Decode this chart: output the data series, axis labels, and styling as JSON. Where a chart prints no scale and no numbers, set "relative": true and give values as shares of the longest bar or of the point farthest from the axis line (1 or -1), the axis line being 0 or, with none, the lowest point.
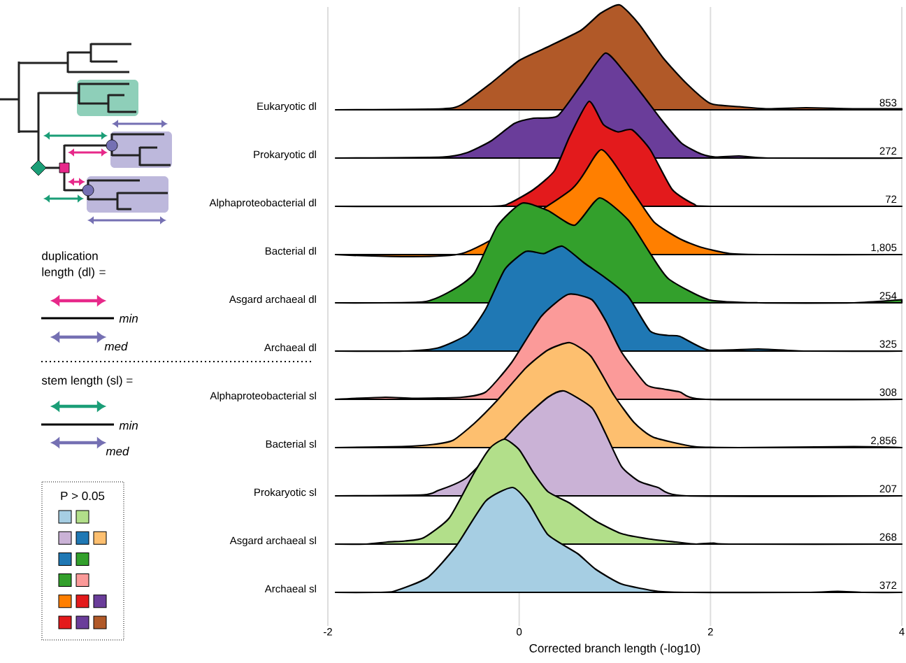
{
  "chart_data": [
    {
      "type": "area",
      "relative": true,
      "ylabel": "Eukaryotic dl",
      "color": "#b15928",
      "xlim": [
        -2,
        4
      ],
      "xticks": [
        -2,
        0,
        2,
        4
      ],
      "grid": "x",
      "tick_labels": false,
      "annotations": [
        "853"
      ],
      "x": [
        -1.92,
        -0.8,
        -0.6,
        -0.3,
        0,
        0.3,
        0.65,
        0.85,
        1.05,
        1.25,
        1.5,
        1.75,
        2.0,
        2.3,
        2.6,
        3.0,
        3.5,
        4.0
      ],
      "values": [
        0,
        0.01,
        0.05,
        0.25,
        0.47,
        0.6,
        0.76,
        0.92,
        1,
        0.82,
        0.5,
        0.25,
        0.06,
        0.03,
        0.01,
        0.02,
        0.01,
        0.01
      ]
    },
    {
      "type": "area",
      "relative": true,
      "ylabel": "Prokaryotic dl",
      "color": "#6a3d9a",
      "xlim": [
        -2,
        4
      ],
      "xticks": [
        -2,
        0,
        2,
        4
      ],
      "tick_labels": false,
      "annotations": [
        "272"
      ],
      "x": [
        -1.92,
        -0.8,
        -0.55,
        -0.3,
        -0.05,
        0.15,
        0.4,
        0.65,
        0.9,
        1.1,
        1.3,
        1.5,
        1.7,
        1.9,
        2.05,
        2.3,
        2.6,
        4.0
      ],
      "values": [
        0,
        0.01,
        0.05,
        0.16,
        0.33,
        0.38,
        0.4,
        0.7,
        1,
        0.82,
        0.59,
        0.35,
        0.14,
        0.04,
        0.01,
        0.02,
        0,
        0
      ]
    },
    {
      "type": "area",
      "relative": true,
      "ylabel": "Alphaproteobacterial dl",
      "color": "#e31a1c",
      "xlim": [
        -2,
        4
      ],
      "xticks": [
        -2,
        0,
        2,
        4
      ],
      "tick_labels": false,
      "annotations": [
        "72"
      ],
      "x": [
        -1.92,
        -0.3,
        -0.1,
        0.15,
        0.37,
        0.53,
        0.73,
        0.88,
        1.03,
        1.18,
        1.37,
        1.6,
        1.83,
        2.0,
        4.0
      ],
      "values": [
        0,
        0,
        0.03,
        0.16,
        0.34,
        0.67,
        1,
        0.78,
        0.71,
        0.73,
        0.54,
        0.16,
        0.02,
        0,
        0
      ]
    },
    {
      "type": "area",
      "relative": true,
      "ylabel": "Bacterial dl",
      "color": "#ff7f00",
      "xlim": [
        -2,
        4
      ],
      "xticks": [
        -2,
        0,
        2,
        4
      ],
      "tick_labels": false,
      "annotations": [
        "1,805"
      ],
      "x": [
        -1.92,
        -0.6,
        -0.3,
        -0.1,
        0.15,
        0.53,
        0.86,
        1.18,
        1.41,
        1.68,
        1.9,
        2.2,
        2.6,
        4.0
      ],
      "values": [
        0,
        0.01,
        null,
        null,
        null,
        0.61,
        1,
        0.61,
        0.31,
        0.15,
        0.07,
        0.01,
        0,
        0
      ]
    },
    {
      "type": "area",
      "relative": true,
      "ylabel": "Asgard archaeal dl",
      "color": "#33a02c",
      "xlim": [
        -2,
        4
      ],
      "xticks": [
        -2,
        0,
        2,
        4
      ],
      "tick_labels": false,
      "annotations": [
        "254"
      ],
      "x": [
        -1.92,
        -1.0,
        -0.7,
        -0.47,
        -0.23,
        0.03,
        0.3,
        0.58,
        0.84,
        1.14,
        1.35,
        1.56,
        1.98,
        2.5,
        3.5,
        4.0
      ],
      "values": [
        0,
        0.01,
        0.12,
        0.28,
        0.73,
        0.95,
        0.88,
        0.74,
        1,
        0.79,
        0.5,
        0.23,
        0.03,
        0,
        0,
        0.03
      ]
    },
    {
      "type": "area",
      "relative": true,
      "ylabel": "Archaeal dl",
      "color": "#1f78b4",
      "xlim": [
        -2,
        4
      ],
      "xticks": [
        -2,
        0,
        2,
        4
      ],
      "tick_labels": false,
      "annotations": [
        "325"
      ],
      "x": [
        -1.92,
        -1.2,
        -0.85,
        -0.54,
        -0.35,
        -0.15,
        0.07,
        0.26,
        0.45,
        0.68,
        0.9,
        1.14,
        1.37,
        1.55,
        1.68,
        1.98,
        2.5,
        3.0,
        4.0
      ],
      "values": [
        0,
        0,
        0.03,
        0.16,
        0.4,
        0.78,
        0.95,
        0.93,
        1,
        0.84,
        0.7,
        0.52,
        0.19,
        0.15,
        0.14,
        0.01,
        0.02,
        0,
        0
      ]
    },
    {
      "type": "area",
      "relative": true,
      "ylabel": "Alphaproteobacterial sl",
      "color": "#fb9a99",
      "xlim": [
        -2,
        4
      ],
      "xticks": [
        -2,
        0,
        2,
        4
      ],
      "tick_labels": false,
      "annotations": [
        "308"
      ],
      "x": [
        -1.92,
        -1.4,
        -1.1,
        -0.6,
        -0.35,
        -0.08,
        0.23,
        0.51,
        0.76,
        0.91,
        1.07,
        1.33,
        1.5,
        1.68,
        1.95,
        4.0
      ],
      "values": [
        0,
        0.02,
        0.01,
        0.02,
        0.07,
        0.35,
        0.79,
        1,
        0.95,
        0.74,
        0.45,
        0.14,
        0.1,
        0.07,
        0,
        0
      ]
    },
    {
      "type": "area",
      "relative": true,
      "ylabel": "Bacterial sl",
      "color": "#fdbf6f",
      "xlim": [
        -2,
        4
      ],
      "xticks": [
        -2,
        0,
        2,
        4
      ],
      "tick_labels": false,
      "annotations": [
        "2,856"
      ],
      "x": [
        -1.92,
        -1.23,
        -0.9,
        -0.69,
        -0.47,
        -0.23,
        0.07,
        0.3,
        0.53,
        0.75,
        0.99,
        1.2,
        1.4,
        1.83,
        2.3,
        3.5,
        4.0
      ],
      "values": [
        0,
        0.01,
        0.03,
        0.07,
        0.23,
        0.45,
        0.76,
        0.93,
        1,
        0.87,
        0.5,
        0.24,
        0.1,
        0.01,
        0,
        0.01,
        0
      ]
    },
    {
      "type": "area",
      "relative": true,
      "ylabel": "Prokaryotic sl",
      "color": "#cab2d6",
      "xlim": [
        -2,
        4
      ],
      "xticks": [
        -2,
        0,
        2,
        4
      ],
      "tick_labels": false,
      "annotations": [
        "207"
      ],
      "x": [
        -1.92,
        -1.0,
        -0.85,
        -0.54,
        -0.25,
        0.03,
        0.3,
        0.47,
        0.76,
        0.9,
        1.07,
        1.25,
        1.45,
        1.75,
        4.0
      ],
      "values": [
        0,
        0.01,
        0.05,
        0.18,
        null,
        0.72,
        0.94,
        1,
        0.84,
        0.6,
        0.28,
        0.14,
        0.08,
        0,
        0
      ]
    },
    {
      "type": "area",
      "relative": true,
      "ylabel": "Asgard archaeal sl",
      "color": "#b2df8a",
      "xlim": [
        -2,
        4
      ],
      "xticks": [
        -2,
        0,
        2,
        4
      ],
      "tick_labels": false,
      "annotations": [
        "268"
      ],
      "x": [
        -1.92,
        -1.6,
        -1.38,
        -1.19,
        -1.0,
        -0.73,
        -0.47,
        -0.3,
        -0.15,
        0,
        0.15,
        0.3,
        0.53,
        0.8,
        1.07,
        1.35,
        1.64,
        1.85,
        2.03,
        2.2,
        4.0
      ],
      "values": [
        0,
        0,
        0.02,
        0.03,
        0.06,
        0.25,
        0.68,
        0.92,
        1,
        0.9,
        0.68,
        0.5,
        0.39,
        0.22,
        0.1,
        0.05,
        0.02,
        0,
        0.01,
        0,
        0
      ]
    },
    {
      "type": "area",
      "relative": true,
      "ylabel": "Archaeal sl",
      "color": "#a6cee3",
      "xlim": [
        -2,
        4
      ],
      "xticks": [
        -2,
        0,
        2,
        4
      ],
      "xlabel": "Corrected branch length (-log10)",
      "annotations": [
        "372"
      ],
      "x": [
        -1.92,
        -1.5,
        -1.31,
        -0.96,
        -0.66,
        -0.35,
        -0.07,
        0.1,
        0.3,
        0.61,
        0.8,
        1.07,
        1.45,
        1.8,
        3.0,
        3.33,
        3.6,
        4.0
      ],
      "values": [
        0,
        0,
        0.01,
        0.14,
        0.44,
        0.87,
        1,
        0.85,
        0.55,
        0.37,
        0.22,
        0.08,
        0.01,
        0,
        0,
        0.01,
        0,
        0
      ]
    },
    {
      "type": "other",
      "annotations": [
        "duplication length (dl) =",
        "min",
        "med",
        "stem length (sl) =",
        "min",
        "med",
        "P > 0.05"
      ]
    }
  ]
}
